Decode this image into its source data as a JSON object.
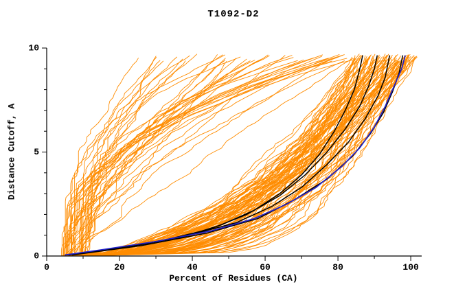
{
  "chart_data": {
    "type": "line",
    "title": "T1092-D2",
    "xlabel": "Percent of Residues (CA)",
    "ylabel": "Distance Cutoff, A",
    "xlim": [
      0,
      103
    ],
    "ylim": [
      0,
      10
    ],
    "xticks": [
      0,
      20,
      40,
      60,
      80,
      100
    ],
    "yticks": [
      0,
      5,
      10
    ],
    "xminor": [
      10,
      30,
      50,
      70,
      90
    ],
    "yminor": [
      1,
      2,
      3,
      4,
      6,
      7,
      8,
      9
    ],
    "grid": false,
    "legend": "none",
    "frame": "left-and-bottom-axes-only",
    "colors": {
      "ensemble": "#ff8c00",
      "highlight": "#000000",
      "reference": "#2222cc",
      "axis": "#000000"
    },
    "ensemble": {
      "label": "predicted-model-curves",
      "color": "#ff8c00",
      "count": 135,
      "seed": 11,
      "bad_fraction": 0.3,
      "start_range": [
        4,
        11
      ],
      "good_end_range": [
        84,
        102
      ],
      "bad_end_range": [
        20,
        84
      ],
      "good_alpha_range": [
        0.18,
        0.6
      ],
      "bad_alpha_range": [
        1.1,
        3.2
      ],
      "top_y_range": [
        9.35,
        9.72
      ],
      "noise": 1.0,
      "noise_gain": 2.5,
      "x_max_clamp": 102.3,
      "line_width": 0.9
    },
    "series": [
      {
        "name": "highlight-model-1",
        "color": "#000000",
        "width": 1.5,
        "points": [
          [
            5,
            0.05
          ],
          [
            14,
            0.25
          ],
          [
            26,
            0.55
          ],
          [
            38,
            0.95
          ],
          [
            48,
            1.5
          ],
          [
            57,
            2.2
          ],
          [
            64,
            3.0
          ],
          [
            70,
            3.9
          ],
          [
            75,
            4.9
          ],
          [
            79,
            6.0
          ],
          [
            82,
            7.0
          ],
          [
            84.5,
            8.0
          ],
          [
            86,
            9.0
          ],
          [
            86.8,
            9.65
          ]
        ]
      },
      {
        "name": "highlight-model-2",
        "color": "#000000",
        "width": 1.5,
        "points": [
          [
            6,
            0.05
          ],
          [
            18,
            0.35
          ],
          [
            32,
            0.75
          ],
          [
            45,
            1.3
          ],
          [
            55,
            2.0
          ],
          [
            64,
            2.9
          ],
          [
            71,
            3.9
          ],
          [
            77,
            5.0
          ],
          [
            82,
            6.1
          ],
          [
            86,
            7.2
          ],
          [
            88.5,
            8.2
          ],
          [
            90,
            9.0
          ],
          [
            90.8,
            9.65
          ]
        ]
      },
      {
        "name": "highlight-model-3",
        "color": "#000000",
        "width": 1.5,
        "points": [
          [
            6,
            0.05
          ],
          [
            22,
            0.45
          ],
          [
            38,
            0.95
          ],
          [
            52,
            1.6
          ],
          [
            62,
            2.4
          ],
          [
            70,
            3.3
          ],
          [
            77,
            4.4
          ],
          [
            83,
            5.5
          ],
          [
            87.5,
            6.6
          ],
          [
            91,
            7.7
          ],
          [
            93,
            8.6
          ],
          [
            94.2,
            9.65
          ]
        ]
      },
      {
        "name": "highlight-model-4",
        "color": "#000000",
        "width": 1.5,
        "points": [
          [
            7,
            0.05
          ],
          [
            26,
            0.5
          ],
          [
            44,
            1.1
          ],
          [
            58,
            1.8
          ],
          [
            68,
            2.7
          ],
          [
            77,
            3.7
          ],
          [
            84,
            4.8
          ],
          [
            89,
            5.9
          ],
          [
            92.5,
            6.9
          ],
          [
            95,
            7.9
          ],
          [
            96.8,
            8.8
          ],
          [
            97.8,
            9.65
          ]
        ]
      },
      {
        "name": "reference-model-blue",
        "color": "#2222cc",
        "width": 1.7,
        "points": [
          [
            5,
            0.05
          ],
          [
            15,
            0.3
          ],
          [
            30,
            0.7
          ],
          [
            45,
            1.2
          ],
          [
            57,
            1.8
          ],
          [
            66,
            2.5
          ],
          [
            74,
            3.3
          ],
          [
            81,
            4.3
          ],
          [
            86,
            5.2
          ],
          [
            90,
            6.2
          ],
          [
            93,
            7.2
          ],
          [
            95.5,
            8.2
          ],
          [
            97.5,
            9.0
          ],
          [
            98.5,
            9.65
          ]
        ]
      }
    ]
  }
}
